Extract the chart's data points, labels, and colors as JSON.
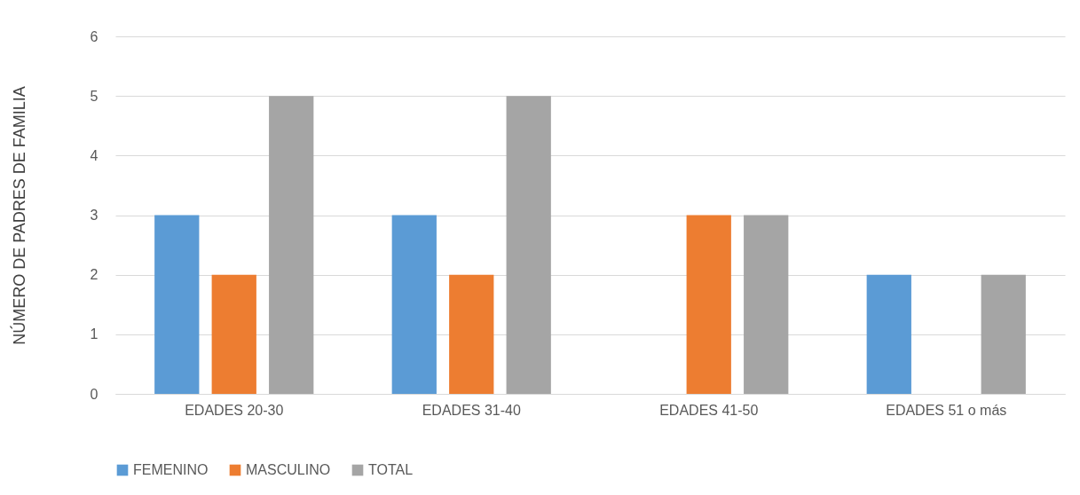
{
  "chart_data": {
    "type": "bar",
    "ylabel": "NÚMERO DE PADRES DE FAMILIA",
    "categories": [
      "EDADES 20-30",
      "EDADES 31-40",
      "EDADES 41-50",
      "EDADES 51 o más"
    ],
    "series": [
      {
        "name": "FEMENINO",
        "color": "#5b9bd5",
        "values": [
          3,
          3,
          0,
          2
        ]
      },
      {
        "name": "MASCULINO",
        "color": "#ed7d31",
        "values": [
          2,
          2,
          3,
          0
        ]
      },
      {
        "name": "TOTAL",
        "color": "#a5a5a5",
        "values": [
          5,
          5,
          3,
          2
        ]
      }
    ],
    "ylim": [
      0,
      6
    ],
    "yticks": [
      0,
      1,
      2,
      3,
      4,
      5,
      6
    ],
    "grid": "y",
    "legend": "bottom"
  }
}
